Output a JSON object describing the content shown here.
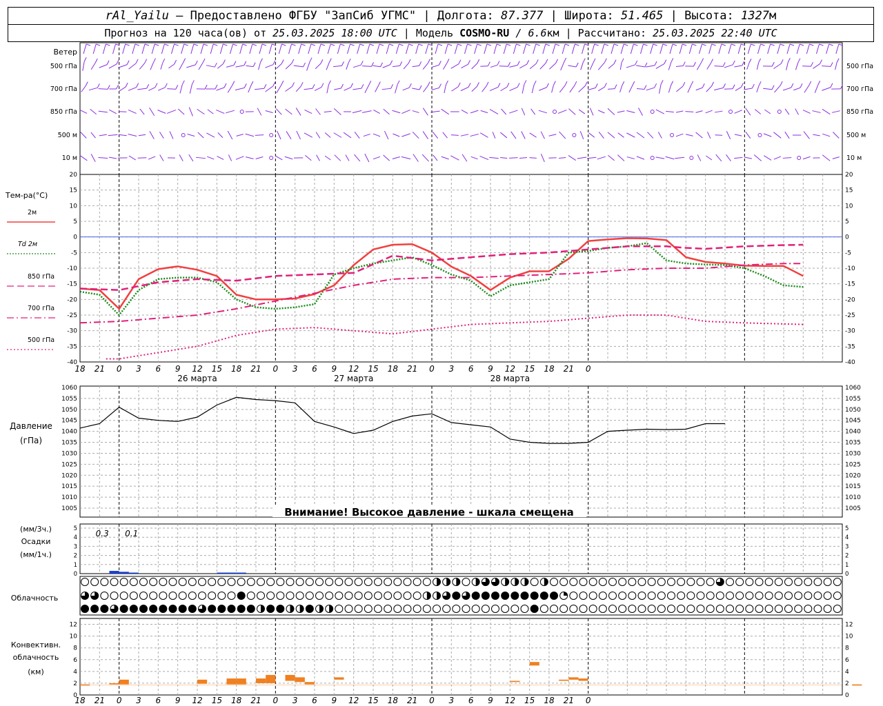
{
  "header": {
    "station": "rAl_Yailu",
    "dash": " — ",
    "provider": "Предоставлено ФГБУ \"ЗапСиб УГМС\"",
    "lon_label": " | Долгота: ",
    "lon": "87.377",
    "lat_label": " | Широта: ",
    "lat": "51.465",
    "alt_label": " | Высота: ",
    "alt": "1327",
    "alt_unit": "м",
    "forecast_label": "Прогноз на 120 часа(ов) от ",
    "forecast_start": "25.03.2025 18:00 UTC",
    "model_label": " | Модель ",
    "model": "COSMO-RU",
    "model_res_sep": " / ",
    "model_res": "6.6",
    "model_res_unit": "км",
    "calc_label": " | Рассчитано: ",
    "calc_time": "25.03.2025 22:40 UTC"
  },
  "colors": {
    "t2m": "#f04040",
    "td2m": "#1a8a1a",
    "t850": "#e0207a",
    "t700": "#e0207a",
    "t500": "#e0207a",
    "wind": "#8a2be2",
    "pressure": "#000000",
    "precip": "#1a3fd0",
    "conv": "#f08020",
    "zero_line": "#4a62e0"
  },
  "x_axis": {
    "tick_labels": [
      "18",
      "21",
      "0",
      "3",
      "6",
      "9",
      "12",
      "15",
      "18",
      "21",
      "0",
      "3",
      "6",
      "9",
      "12",
      "15",
      "18",
      "21",
      "0",
      "3",
      "6",
      "9",
      "12",
      "15",
      "18",
      "21",
      "0"
    ],
    "date_labels": [
      "26 марта",
      "27 марта",
      "28 марта"
    ]
  },
  "wind_panel": {
    "title": "Ветер",
    "levels": [
      "500 гПа",
      "700 гПа",
      "850 гПа",
      "500 м",
      "10  м"
    ]
  },
  "temp_panel": {
    "title": "Тем-ра(°C)",
    "legend": [
      {
        "key": "t2m",
        "label": "2м",
        "style": "solid"
      },
      {
        "key": "td2m",
        "label": "Td  2м",
        "style": "dotted"
      },
      {
        "key": "t850",
        "label": "850 гПа",
        "style": "dash"
      },
      {
        "key": "t700",
        "label": "700 гПа",
        "style": "dashdot"
      },
      {
        "key": "t500",
        "label": "500 гПа",
        "style": "dot"
      }
    ],
    "y_ticks": [
      "20",
      "15",
      "10",
      "5",
      "0",
      "-5",
      "-10",
      "-15",
      "-20",
      "-25",
      "-30",
      "-35",
      "-40"
    ]
  },
  "pressure_panel": {
    "title": "Давление",
    "unit": "(гПа)",
    "y_ticks": [
      "1060",
      "1055",
      "1050",
      "1045",
      "1040",
      "1035",
      "1030",
      "1025",
      "1020",
      "1015",
      "1010",
      "1005"
    ],
    "warning": "Внимание! Высокое давление - шкала смещена"
  },
  "precip_panel": {
    "unit_top": "(мм/3ч.)",
    "title": "Осадки",
    "unit_bottom": "(мм/1ч.)",
    "y_ticks": [
      "5",
      "4",
      "3",
      "2",
      "1",
      "0"
    ],
    "totals": [
      {
        "step": 1,
        "text": "0.3"
      },
      {
        "step": 4,
        "text": "0.1"
      }
    ]
  },
  "cloud_panel": {
    "title": "Облачность"
  },
  "conv_panel": {
    "title_1": "Конвективн.",
    "title_2": "облачность",
    "unit": "(км)",
    "y_ticks": [
      "12",
      "10",
      "8",
      "6",
      "4",
      "2",
      "0"
    ]
  },
  "chart_data": [
    {
      "type": "line",
      "name": "temperature",
      "x_unit": "hours from 25.03.2025 18:00 UTC",
      "ylim": [
        -40,
        20
      ],
      "grid": true,
      "series": [
        {
          "name": "2м",
          "key": "t2m",
          "points": [
            [
              0,
              -16.5
            ],
            [
              3,
              -17
            ],
            [
              6,
              -23
            ],
            [
              9,
              -13.5
            ],
            [
              12,
              -10.3
            ],
            [
              15,
              -9.4
            ],
            [
              18,
              -10.5
            ],
            [
              21,
              -12.5
            ],
            [
              24,
              -18.5
            ],
            [
              27,
              -20
            ],
            [
              30,
              -20
            ],
            [
              33,
              -19.7
            ],
            [
              36,
              -18.3
            ],
            [
              39,
              -15.5
            ],
            [
              42,
              -9
            ],
            [
              45,
              -4
            ],
            [
              48,
              -2.5
            ],
            [
              51,
              -2.3
            ],
            [
              54,
              -5
            ],
            [
              57,
              -9.5
            ],
            [
              60,
              -12.5
            ],
            [
              63,
              -17
            ],
            [
              66,
              -13
            ],
            [
              69,
              -11
            ],
            [
              72,
              -11
            ],
            [
              75,
              -7
            ],
            [
              78,
              -1.3
            ],
            [
              81,
              -0.8
            ],
            [
              84,
              -0.4
            ],
            [
              87,
              -0.5
            ],
            [
              90,
              -1
            ],
            [
              93,
              -6.5
            ],
            [
              96,
              -8
            ],
            [
              99,
              -8.5
            ],
            [
              102,
              -9.2
            ],
            [
              105,
              -9.3
            ],
            [
              108,
              -9.3
            ],
            [
              111,
              -12.5
            ]
          ]
        },
        {
          "name": "Td  2м",
          "key": "td2m",
          "points": [
            [
              0,
              -17.5
            ],
            [
              3,
              -18.5
            ],
            [
              6,
              -25
            ],
            [
              9,
              -17
            ],
            [
              12,
              -13.5
            ],
            [
              15,
              -13
            ],
            [
              18,
              -13
            ],
            [
              21,
              -14.5
            ],
            [
              24,
              -20
            ],
            [
              27,
              -22.5
            ],
            [
              30,
              -23
            ],
            [
              33,
              -22.5
            ],
            [
              36,
              -21.5
            ],
            [
              39,
              -12
            ],
            [
              42,
              -10
            ],
            [
              45,
              -8.5
            ],
            [
              48,
              -7.5
            ],
            [
              51,
              -6.5
            ],
            [
              54,
              -9
            ],
            [
              57,
              -12
            ],
            [
              60,
              -14
            ],
            [
              63,
              -19
            ],
            [
              66,
              -15.5
            ],
            [
              69,
              -14.5
            ],
            [
              72,
              -13.5
            ],
            [
              75,
              -5
            ],
            [
              78,
              -4.5
            ],
            [
              81,
              -3.5
            ],
            [
              84,
              -3
            ],
            [
              87,
              -2
            ],
            [
              90,
              -7.5
            ],
            [
              93,
              -8.5
            ],
            [
              96,
              -8.8
            ],
            [
              99,
              -9
            ],
            [
              102,
              -10
            ],
            [
              105,
              -12.5
            ],
            [
              108,
              -15.5
            ],
            [
              111,
              -16
            ]
          ]
        },
        {
          "name": "850 гПа",
          "key": "t850",
          "points": [
            [
              0,
              -16.5
            ],
            [
              6,
              -17
            ],
            [
              12,
              -14.5
            ],
            [
              18,
              -13.5
            ],
            [
              24,
              -14
            ],
            [
              30,
              -12.5
            ],
            [
              36,
              -12
            ],
            [
              42,
              -11.5
            ],
            [
              48,
              -6
            ],
            [
              54,
              -7.5
            ],
            [
              60,
              -6.5
            ],
            [
              66,
              -5.5
            ],
            [
              72,
              -5
            ],
            [
              78,
              -4
            ],
            [
              84,
              -3
            ],
            [
              90,
              -3
            ],
            [
              93,
              -3.5
            ],
            [
              96,
              -3.8
            ],
            [
              102,
              -3
            ],
            [
              108,
              -2.6
            ],
            [
              111,
              -2.5
            ]
          ]
        },
        {
          "name": "700 гПа",
          "key": "t700",
          "points": [
            [
              0,
              -27.5
            ],
            [
              6,
              -27
            ],
            [
              12,
              -26
            ],
            [
              18,
              -25
            ],
            [
              24,
              -23
            ],
            [
              30,
              -20.5
            ],
            [
              36,
              -18
            ],
            [
              42,
              -15.5
            ],
            [
              48,
              -13.5
            ],
            [
              54,
              -13
            ],
            [
              60,
              -13
            ],
            [
              66,
              -12.5
            ],
            [
              72,
              -12
            ],
            [
              78,
              -11.5
            ],
            [
              84,
              -10.5
            ],
            [
              90,
              -10
            ],
            [
              96,
              -10
            ],
            [
              102,
              -9
            ],
            [
              108,
              -8.5
            ],
            [
              111,
              -8.5
            ]
          ]
        },
        {
          "name": "500 гПа",
          "key": "t500",
          "points": [
            [
              4,
              -39
            ],
            [
              6,
              -39
            ],
            [
              12,
              -37
            ],
            [
              18,
              -35
            ],
            [
              24,
              -31.5
            ],
            [
              30,
              -29.5
            ],
            [
              36,
              -29
            ],
            [
              42,
              -30
            ],
            [
              48,
              -31
            ],
            [
              54,
              -29.5
            ],
            [
              60,
              -28
            ],
            [
              66,
              -27.5
            ],
            [
              72,
              -27
            ],
            [
              78,
              -26
            ],
            [
              84,
              -25
            ],
            [
              90,
              -25
            ],
            [
              96,
              -27
            ],
            [
              102,
              -27.5
            ],
            [
              111,
              -28
            ]
          ]
        }
      ]
    },
    {
      "type": "line",
      "name": "pressure",
      "ylim": [
        1005,
        1060
      ],
      "series": [
        {
          "name": "Давление",
          "points": [
            [
              0,
              1041.5
            ],
            [
              3,
              1043.5
            ],
            [
              6,
              1051
            ],
            [
              9,
              1046
            ],
            [
              12,
              1045
            ],
            [
              15,
              1044.5
            ],
            [
              18,
              1046.5
            ],
            [
              21,
              1052
            ],
            [
              24,
              1055.5
            ],
            [
              27,
              1054.5
            ],
            [
              30,
              1054
            ],
            [
              33,
              1053
            ],
            [
              36,
              1044.5
            ],
            [
              39,
              1042
            ],
            [
              42,
              1039
            ],
            [
              45,
              1040.5
            ],
            [
              48,
              1044.5
            ],
            [
              51,
              1047
            ],
            [
              54,
              1048
            ],
            [
              57,
              1044
            ],
            [
              60,
              1043
            ],
            [
              63,
              1042
            ],
            [
              66,
              1036.5
            ],
            [
              69,
              1035
            ],
            [
              72,
              1034.5
            ],
            [
              75,
              1034.5
            ],
            [
              78,
              1035
            ],
            [
              81,
              1040
            ],
            [
              84,
              1040.5
            ],
            [
              87,
              1041
            ],
            [
              90,
              1040.8
            ],
            [
              93,
              1041
            ],
            [
              96,
              1043.5
            ],
            [
              99,
              1043.5
            ]
          ]
        }
      ]
    },
    {
      "type": "bar",
      "name": "precipitation",
      "ylim": [
        0,
        5
      ],
      "series": [
        {
          "name": "Осадки",
          "points": [
            [
              3,
              0.3
            ],
            [
              4,
              0.2
            ],
            [
              5,
              0.05
            ],
            [
              14,
              0.1
            ],
            [
              15,
              0.1
            ],
            [
              16,
              0.05
            ]
          ]
        }
      ]
    },
    {
      "type": "bar",
      "name": "convective_cloud",
      "ylim": [
        0,
        13
      ],
      "series": [
        {
          "name": "Конвективная облачность",
          "layers": [
            [
              0,
              1.6,
              1.8
            ],
            [
              3,
              1.8,
              2.0
            ],
            [
              4,
              1.8,
              2.6
            ],
            [
              12,
              1.9,
              2.6
            ],
            [
              15,
              1.8,
              2.8
            ],
            [
              16,
              1.8,
              2.8
            ],
            [
              18,
              2.0,
              2.8
            ],
            [
              19,
              2.0,
              3.4
            ],
            [
              21,
              2.4,
              3.4
            ],
            [
              22,
              2.2,
              3.0
            ],
            [
              23,
              1.8,
              2.2
            ],
            [
              26,
              2.6,
              3.0
            ],
            [
              44,
              2.2,
              2.4
            ],
            [
              46,
              5.0,
              5.6
            ],
            [
              49,
              2.4,
              2.6
            ],
            [
              50,
              2.6,
              3.0
            ],
            [
              51,
              2.4,
              2.8
            ],
            [
              79,
              1.6,
              1.8
            ]
          ]
        }
      ]
    }
  ]
}
